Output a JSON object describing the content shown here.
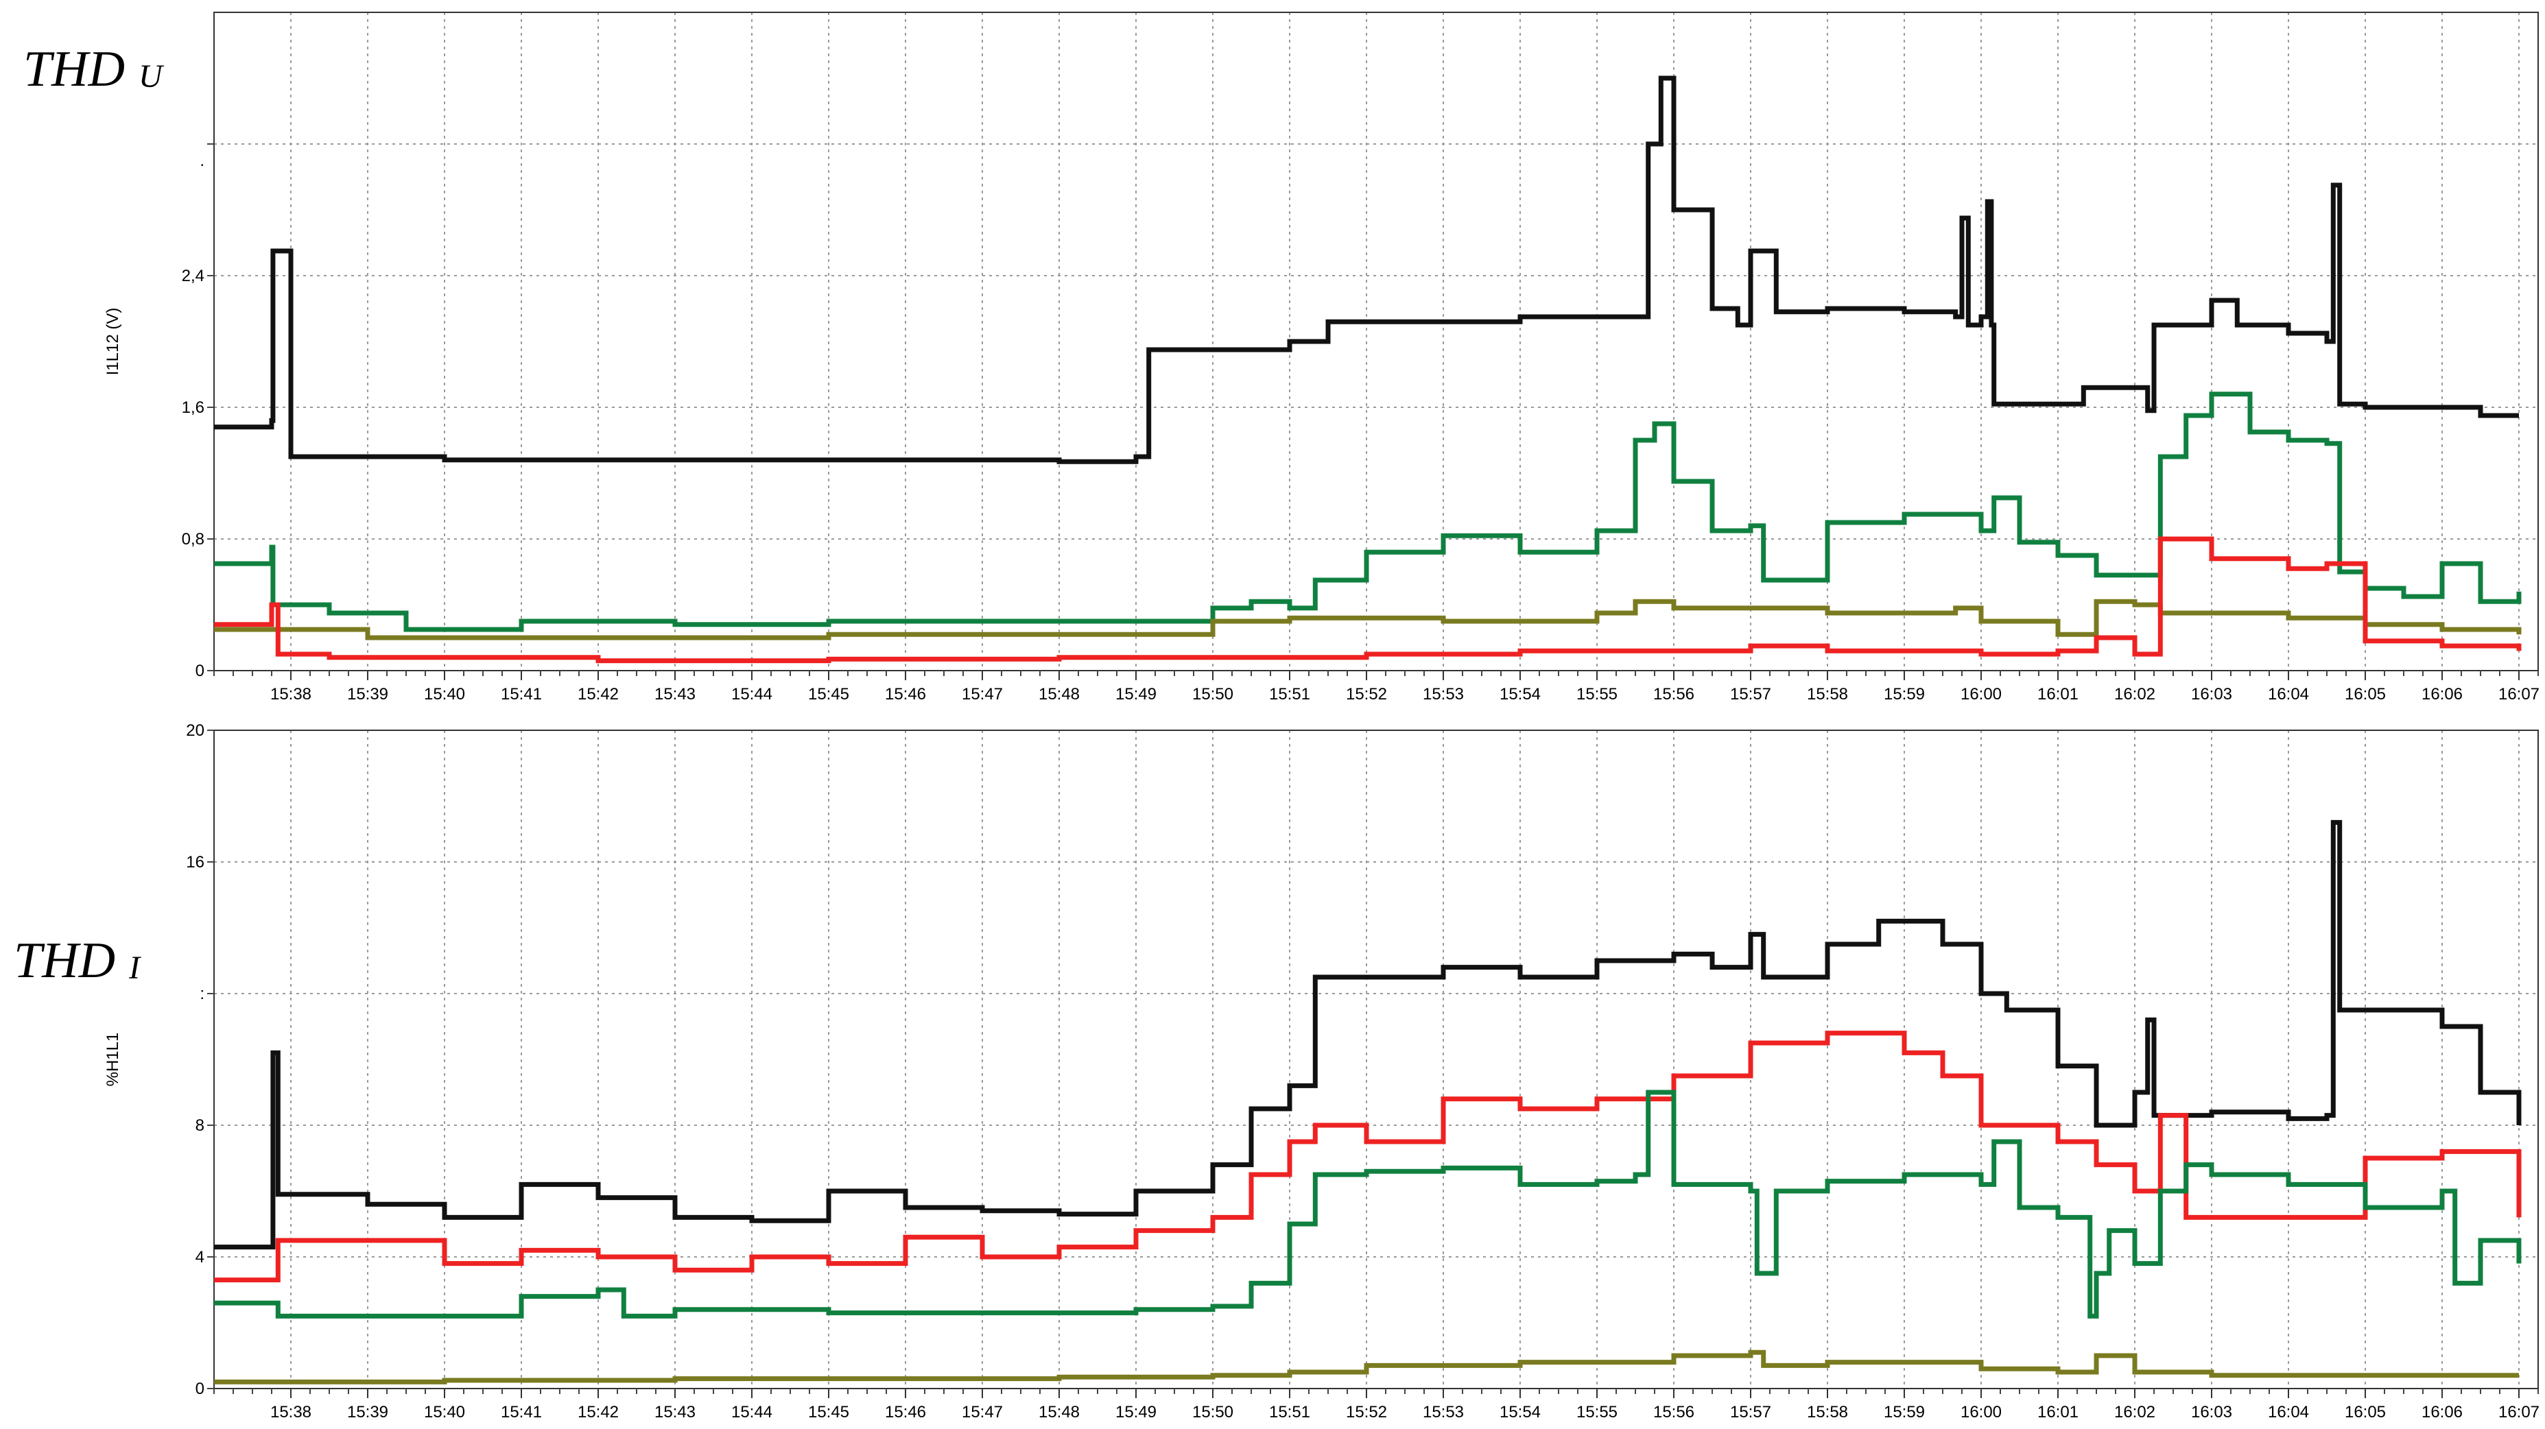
{
  "chart_data": [
    {
      "type": "line",
      "panel_label": "THD",
      "panel_label_sub": "U",
      "ylabel": "I1L12 (V)",
      "ylim": [
        0,
        4
      ],
      "yticks": [
        0,
        0.8,
        1.6,
        2.4,
        3.2
      ],
      "ytick_labels": [
        "0",
        "0,8",
        "1,6",
        "2,4",
        ""
      ],
      "extra_ytick_labels": [
        {
          "value": 3.1,
          "text": "."
        }
      ],
      "xlim": [
        "15:37",
        "16:07:15"
      ],
      "xticks": [
        "15:38",
        "15:39",
        "15:40",
        "15:41",
        "15:42",
        "15:43",
        "15:44",
        "15:45",
        "15:46",
        "15:47",
        "15:48",
        "15:49",
        "15:50",
        "15:51",
        "15:52",
        "15:53",
        "15:54",
        "15:55",
        "15:56",
        "15:57",
        "15:58",
        "15:59",
        "16:00",
        "16:01",
        "16:02",
        "16:03",
        "16:04",
        "16:05",
        "16:06",
        "16:07"
      ],
      "grid": true,
      "series": [
        {
          "color": "#111111",
          "x": [
            "15:37:00",
            "15:37:45",
            "15:37:46",
            "15:38:00",
            "15:40:00",
            "15:42:00",
            "15:44:00",
            "15:46:00",
            "15:48:00",
            "15:49:00",
            "15:49:10",
            "15:50:00",
            "15:51:00",
            "15:51:30",
            "15:53:00",
            "15:54:00",
            "15:55:00",
            "15:55:30",
            "15:55:40",
            "15:55:50",
            "15:56:00",
            "15:56:30",
            "15:56:50",
            "15:57:00",
            "15:57:20",
            "15:58:00",
            "15:59:00",
            "15:59:40",
            "15:59:45",
            "15:59:50",
            "16:00:00",
            "16:00:05",
            "16:00:08",
            "16:00:10",
            "16:01:00",
            "16:01:20",
            "16:02:00",
            "16:02:10",
            "16:02:15",
            "16:02:30",
            "16:03:00",
            "16:03:20",
            "16:04:00",
            "16:04:30",
            "16:04:35",
            "16:04:40",
            "16:05:00",
            "16:06:00",
            "16:06:30",
            "16:07:00"
          ],
          "y": [
            1.48,
            1.52,
            2.55,
            1.3,
            1.28,
            1.28,
            1.28,
            1.28,
            1.27,
            1.3,
            1.95,
            1.95,
            2.0,
            2.12,
            2.12,
            2.15,
            2.15,
            2.15,
            3.2,
            3.6,
            2.8,
            2.2,
            2.1,
            2.55,
            2.18,
            2.2,
            2.18,
            2.15,
            2.75,
            2.1,
            2.15,
            2.85,
            2.1,
            1.62,
            1.62,
            1.72,
            1.72,
            1.58,
            2.1,
            2.1,
            2.25,
            2.1,
            2.05,
            2.0,
            2.95,
            1.62,
            1.6,
            1.6,
            1.55,
            1.55
          ]
        },
        {
          "color": "#108040",
          "x": [
            "15:37:00",
            "15:37:45",
            "15:37:46",
            "15:38:30",
            "15:39:00",
            "15:39:30",
            "15:41:00",
            "15:42:00",
            "15:43:00",
            "15:45:00",
            "15:47:00",
            "15:49:00",
            "15:50:00",
            "15:50:30",
            "15:51:00",
            "15:51:20",
            "15:52:00",
            "15:53:00",
            "15:54:00",
            "15:55:00",
            "15:55:30",
            "15:55:45",
            "15:56:00",
            "15:56:30",
            "15:57:00",
            "15:57:10",
            "15:58:00",
            "15:59:00",
            "16:00:00",
            "16:00:10",
            "16:00:30",
            "16:01:00",
            "16:01:30",
            "16:02:00",
            "16:02:20",
            "16:02:40",
            "16:03:00",
            "16:03:30",
            "16:04:00",
            "16:04:30",
            "16:04:40",
            "16:05:00",
            "16:05:30",
            "16:06:00",
            "16:06:30",
            "16:07:00"
          ],
          "y": [
            0.65,
            0.75,
            0.4,
            0.35,
            0.35,
            0.25,
            0.3,
            0.3,
            0.28,
            0.3,
            0.3,
            0.3,
            0.38,
            0.42,
            0.38,
            0.55,
            0.72,
            0.82,
            0.72,
            0.85,
            1.4,
            1.5,
            1.15,
            0.85,
            0.88,
            0.55,
            0.9,
            0.95,
            0.85,
            1.05,
            0.78,
            0.7,
            0.58,
            0.58,
            1.3,
            1.55,
            1.68,
            1.45,
            1.4,
            1.38,
            0.6,
            0.5,
            0.45,
            0.65,
            0.42,
            0.48
          ]
        },
        {
          "color": "#7a7a20",
          "x": [
            "15:37:00",
            "15:38:00",
            "15:39:00",
            "15:42:00",
            "15:45:00",
            "15:48:00",
            "15:50:00",
            "15:51:00",
            "15:53:00",
            "15:55:00",
            "15:55:30",
            "15:56:00",
            "15:57:00",
            "15:58:00",
            "15:59:00",
            "15:59:40",
            "16:00:00",
            "16:01:00",
            "16:01:30",
            "16:02:00",
            "16:02:20",
            "16:03:00",
            "16:04:00",
            "16:05:00",
            "16:06:00",
            "16:07:00"
          ],
          "y": [
            0.25,
            0.25,
            0.2,
            0.2,
            0.22,
            0.22,
            0.3,
            0.32,
            0.3,
            0.35,
            0.42,
            0.38,
            0.38,
            0.35,
            0.35,
            0.38,
            0.3,
            0.22,
            0.42,
            0.4,
            0.35,
            0.35,
            0.32,
            0.28,
            0.25,
            0.22
          ]
        },
        {
          "color": "#ee2222",
          "x": [
            "15:37:00",
            "15:37:45",
            "15:37:50",
            "15:38:30",
            "15:40:00",
            "15:42:00",
            "15:45:00",
            "15:48:00",
            "15:50:00",
            "15:52:00",
            "15:54:00",
            "15:56:00",
            "15:57:00",
            "15:58:00",
            "16:00:00",
            "16:01:00",
            "16:01:30",
            "16:02:00",
            "16:02:10",
            "16:02:20",
            "16:03:00",
            "16:04:00",
            "16:04:30",
            "16:05:00",
            "16:06:00",
            "16:07:00"
          ],
          "y": [
            0.28,
            0.4,
            0.1,
            0.08,
            0.08,
            0.06,
            0.07,
            0.08,
            0.08,
            0.1,
            0.12,
            0.12,
            0.15,
            0.12,
            0.1,
            0.12,
            0.2,
            0.1,
            0.1,
            0.8,
            0.68,
            0.62,
            0.65,
            0.18,
            0.15,
            0.12
          ]
        }
      ]
    },
    {
      "type": "line",
      "panel_label": "THD",
      "panel_label_sub": "I",
      "ylabel": "%H1L1",
      "ylim": [
        0,
        20
      ],
      "yticks": [
        0,
        4,
        8,
        12,
        16,
        20
      ],
      "ytick_labels": [
        "0",
        "4",
        "8",
        ":",
        "16",
        "20"
      ],
      "xlim": [
        "15:37",
        "16:07:15"
      ],
      "xticks": [
        "15:38",
        "15:39",
        "15:40",
        "15:41",
        "15:42",
        "15:43",
        "15:44",
        "15:45",
        "15:46",
        "15:47",
        "15:48",
        "15:49",
        "15:50",
        "15:51",
        "15:52",
        "15:53",
        "15:54",
        "15:55",
        "15:56",
        "15:57",
        "15:58",
        "15:59",
        "16:00",
        "16:01",
        "16:02",
        "16:03",
        "16:04",
        "16:05",
        "16:06",
        "16:07"
      ],
      "grid": true,
      "series": [
        {
          "color": "#111111",
          "x": [
            "15:37:00",
            "15:37:45",
            "15:37:46",
            "15:37:50",
            "15:39:00",
            "15:40:00",
            "15:41:00",
            "15:42:00",
            "15:43:00",
            "15:44:00",
            "15:45:00",
            "15:46:00",
            "15:47:00",
            "15:48:00",
            "15:49:00",
            "15:50:00",
            "15:50:30",
            "15:51:00",
            "15:51:20",
            "15:52:00",
            "15:53:00",
            "15:54:00",
            "15:55:00",
            "15:56:00",
            "15:56:30",
            "15:57:00",
            "15:57:10",
            "15:58:00",
            "15:58:40",
            "15:59:30",
            "16:00:00",
            "16:00:20",
            "16:01:00",
            "16:01:30",
            "16:02:00",
            "16:02:10",
            "16:02:15",
            "16:03:00",
            "16:04:00",
            "16:04:30",
            "16:04:35",
            "16:04:40",
            "16:05:00",
            "16:06:00",
            "16:06:30",
            "16:07:00"
          ],
          "y": [
            4.3,
            4.3,
            10.2,
            5.9,
            5.6,
            5.2,
            6.2,
            5.8,
            5.2,
            5.1,
            6.0,
            5.5,
            5.4,
            5.3,
            6.0,
            6.8,
            8.5,
            9.2,
            12.5,
            12.5,
            12.8,
            12.5,
            13.0,
            13.2,
            12.8,
            13.8,
            12.5,
            13.5,
            14.2,
            13.5,
            12.0,
            11.5,
            9.8,
            8.0,
            9.0,
            11.2,
            8.3,
            8.4,
            8.2,
            8.3,
            17.2,
            11.5,
            11.5,
            11.0,
            9.0,
            8.0
          ]
        },
        {
          "color": "#ee2222",
          "x": [
            "15:37:00",
            "15:37:45",
            "15:37:50",
            "15:39:00",
            "15:40:00",
            "15:41:00",
            "15:42:00",
            "15:43:00",
            "15:44:00",
            "15:45:00",
            "15:46:00",
            "15:47:00",
            "15:48:00",
            "15:49:00",
            "15:50:00",
            "15:50:30",
            "15:51:00",
            "15:51:20",
            "15:52:00",
            "15:53:00",
            "15:54:00",
            "15:55:00",
            "15:56:00",
            "15:57:00",
            "15:58:00",
            "15:59:00",
            "15:59:30",
            "16:00:00",
            "16:00:30",
            "16:01:00",
            "16:01:30",
            "16:02:00",
            "16:02:20",
            "16:02:40",
            "16:03:00",
            "16:04:00",
            "16:04:30",
            "16:05:00",
            "16:06:00",
            "16:07:00"
          ],
          "y": [
            3.3,
            3.3,
            4.5,
            4.5,
            3.8,
            4.2,
            4.0,
            3.6,
            4.0,
            3.8,
            4.6,
            4.0,
            4.3,
            4.8,
            5.2,
            6.5,
            7.5,
            8.0,
            7.5,
            8.8,
            8.5,
            8.8,
            9.5,
            10.5,
            10.8,
            10.2,
            9.5,
            8.0,
            8.0,
            7.5,
            6.8,
            6.0,
            8.3,
            5.2,
            5.2,
            5.2,
            5.2,
            7.0,
            7.2,
            5.2
          ]
        },
        {
          "color": "#108040",
          "x": [
            "15:37:00",
            "15:37:45",
            "15:37:50",
            "15:39:00",
            "15:41:00",
            "15:42:00",
            "15:42:20",
            "15:43:00",
            "15:45:00",
            "15:47:00",
            "15:49:00",
            "15:50:00",
            "15:50:30",
            "15:51:00",
            "15:51:20",
            "15:52:00",
            "15:53:00",
            "15:54:00",
            "15:55:00",
            "15:55:30",
            "15:55:40",
            "15:56:00",
            "15:57:00",
            "15:57:05",
            "15:57:20",
            "15:58:00",
            "15:59:00",
            "16:00:00",
            "16:00:10",
            "16:00:30",
            "16:01:00",
            "16:01:25",
            "16:01:30",
            "16:01:40",
            "16:02:00",
            "16:02:20",
            "16:02:40",
            "16:03:00",
            "16:04:00",
            "16:05:00",
            "16:06:00",
            "16:06:10",
            "16:06:30",
            "16:07:00"
          ],
          "y": [
            2.6,
            2.6,
            2.2,
            2.2,
            2.8,
            3.0,
            2.2,
            2.4,
            2.3,
            2.3,
            2.4,
            2.5,
            3.2,
            5.0,
            6.5,
            6.6,
            6.7,
            6.2,
            6.3,
            6.5,
            9.0,
            6.2,
            6.0,
            3.5,
            6.0,
            6.3,
            6.5,
            6.2,
            7.5,
            5.5,
            5.2,
            2.2,
            3.5,
            4.8,
            3.8,
            6.0,
            6.8,
            6.5,
            6.2,
            5.5,
            6.0,
            3.2,
            4.5,
            3.8
          ]
        },
        {
          "color": "#7a7a20",
          "x": [
            "15:37:00",
            "15:40:00",
            "15:43:00",
            "15:46:00",
            "15:48:00",
            "15:50:00",
            "15:51:00",
            "15:52:00",
            "15:54:00",
            "15:55:00",
            "15:56:00",
            "15:57:00",
            "15:57:10",
            "15:58:00",
            "16:00:00",
            "16:01:00",
            "16:01:30",
            "16:02:00",
            "16:03:00",
            "16:05:00",
            "16:07:00"
          ],
          "y": [
            0.2,
            0.25,
            0.3,
            0.3,
            0.35,
            0.4,
            0.5,
            0.7,
            0.8,
            0.8,
            1.0,
            1.1,
            0.7,
            0.8,
            0.6,
            0.5,
            1.0,
            0.5,
            0.4,
            0.4,
            0.4
          ]
        }
      ]
    }
  ],
  "colors": {
    "black": "#111111",
    "green": "#108040",
    "olive": "#7a7a20",
    "red": "#ee2222",
    "grid": "#9a9a9a"
  }
}
